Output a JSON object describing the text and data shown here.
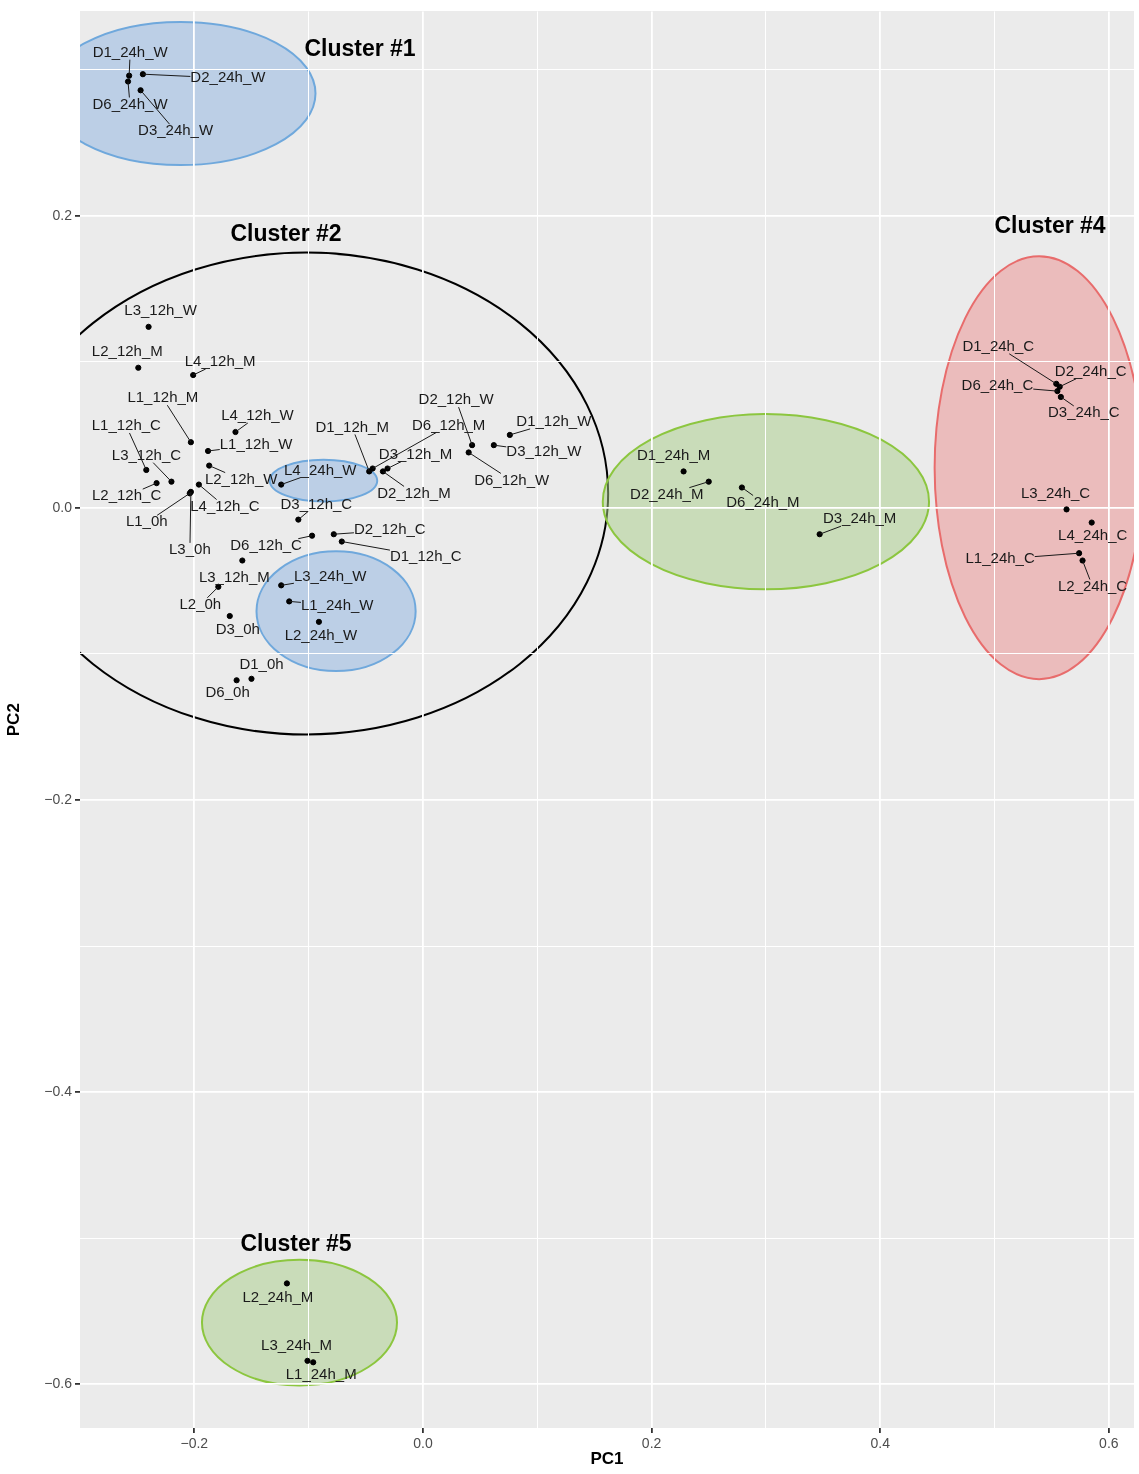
{
  "chart_data": {
    "type": "scatter",
    "xlabel": "PC1",
    "ylabel": "PC2",
    "annotations": [
      "Cluster #1",
      "Cluster #2",
      "Cluster #4",
      "Cluster #5"
    ],
    "xlim": [
      -0.3,
      0.622
    ],
    "ylim": [
      -0.63,
      0.34
    ],
    "xticks": [
      {
        "value": -0.2,
        "label": "−0.2"
      },
      {
        "value": -0.1,
        "label": null
      },
      {
        "value": 0,
        "label": "0.0"
      },
      {
        "value": 0.1,
        "label": null
      },
      0.2,
      {
        "value": 0.3,
        "label": null
      },
      0.4,
      {
        "value": 0.5,
        "label": null
      },
      0.6
    ],
    "yticks": [
      {
        "value": 0.3,
        "label": null
      },
      0.2,
      {
        "value": 0.1,
        "label": null
      },
      {
        "value": 0,
        "label": "0.0"
      },
      {
        "value": -0.1,
        "label": null
      },
      {
        "value": -0.2,
        "label": "−0.2"
      },
      {
        "value": -0.3,
        "label": null
      },
      {
        "value": -0.4,
        "label": "−0.4"
      },
      {
        "value": -0.5,
        "label": null
      },
      {
        "value": -0.6,
        "label": "−0.6"
      }
    ],
    "grid": true,
    "legend": false,
    "marker": "circle",
    "series": [
      {
        "color": "#000000",
        "x": [
          -0.257,
          -0.245,
          -0.258,
          -0.247,
          -0.24,
          -0.249,
          -0.201,
          -0.203,
          -0.164,
          -0.188,
          -0.242,
          -0.22,
          -0.233,
          -0.187,
          -0.196,
          -0.204,
          -0.203,
          -0.109,
          -0.097,
          -0.158,
          -0.179,
          -0.169,
          -0.15,
          -0.163,
          -0.078,
          -0.071,
          -0.047,
          -0.044,
          -0.031,
          -0.035,
          0.043,
          0.04,
          0.076,
          0.062,
          -0.124,
          -0.124,
          -0.117,
          -0.091,
          0.228,
          0.25,
          0.279,
          0.347,
          0.554,
          0.557,
          0.555,
          0.558,
          0.563,
          0.585,
          0.574,
          0.577,
          -0.119,
          -0.101,
          -0.096
        ],
        "values": [
          0.296,
          0.297,
          0.292,
          0.286,
          0.124,
          0.096,
          0.091,
          0.045,
          0.052,
          0.039,
          0.026,
          0.018,
          0.017,
          0.029,
          0.016,
          0.01,
          0.011,
          -0.008,
          -0.019,
          -0.036,
          -0.054,
          -0.074,
          -0.117,
          -0.118,
          -0.018,
          -0.023,
          0.025,
          0.027,
          0.027,
          0.025,
          0.043,
          0.038,
          0.05,
          0.043,
          0.016,
          -0.053,
          -0.064,
          -0.078,
          0.025,
          0.018,
          0.014,
          -0.018,
          0.085,
          0.083,
          0.08,
          0.076,
          -0.001,
          -0.01,
          -0.031,
          -0.036,
          -0.531,
          -0.584,
          -0.585
        ],
        "value_labels": [
          "D1_24h_W",
          "D2_24h_W",
          "D6_24h_W",
          "D3_24h_W",
          "L3_12h_W",
          "L2_12h_M",
          "L4_12h_M",
          "L1_12h_M",
          "L4_12h_W",
          "L1_12h_W",
          "L1_12h_C",
          "L3_12h_C",
          "L2_12h_C",
          "L2_12h_W",
          "L4_12h_C",
          "L1_0h",
          "L3_0h",
          "D3_12h_C",
          "D6_12h_C",
          "L3_12h_M",
          "L2_0h",
          "D3_0h",
          "D1_0h",
          "D6_0h",
          "D2_12h_C",
          "D1_12h_C",
          "D1_12h_M",
          "D6_12h_M",
          "D3_12h_M",
          "D2_12h_M",
          "D2_12h_W",
          "D6_12h_W",
          "D1_12h_W",
          "D3_12h_W",
          "L4_24h_W",
          "L3_24h_W",
          "L1_24h_W",
          "L2_24h_W",
          "D1_24h_M",
          "D2_24h_M",
          "D6_24h_M",
          "D3_24h_M",
          "D1_24h_C",
          "D2_24h_C",
          "D6_24h_C",
          "D3_24h_C",
          "L3_24h_C",
          "L4_24h_C",
          "L1_24h_C",
          "L2_24h_C",
          "L2_24h_M",
          "L3_24h_M",
          "L1_24h_M"
        ]
      }
    ]
  }
}
